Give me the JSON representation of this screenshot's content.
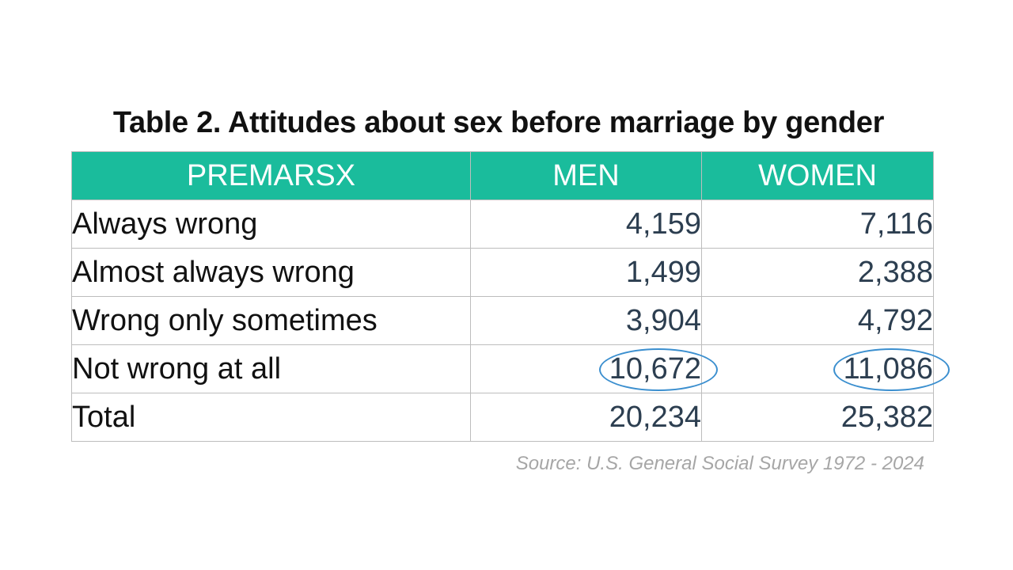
{
  "title": "Table 2. Attitudes about sex before marriage by gender",
  "source": "Source: U.S. General Social Survey 1972 - 2024",
  "colors": {
    "header_bg": "#1abc9c",
    "header_text": "#ffffff",
    "value_text": "#2c3e50",
    "highlight": "#3b8fcf",
    "source_text": "#a6a6a6"
  },
  "chart_data": {
    "type": "table",
    "title": "Table 2. Attitudes about sex before marriage by gender",
    "columns": [
      "PREMARSX",
      "MEN",
      "WOMEN"
    ],
    "rows": [
      {
        "label": "Always wrong",
        "men": "4,159",
        "women": "7,116"
      },
      {
        "label": "Almost always wrong",
        "men": "1,499",
        "women": "2,388"
      },
      {
        "label": "Wrong only sometimes",
        "men": "3,904",
        "women": "4,792"
      },
      {
        "label": "Not wrong at all",
        "men": "10,672",
        "women": "11,086"
      },
      {
        "label": "Total",
        "men": "20,234",
        "women": "25,382"
      }
    ],
    "highlighted_row": "Not wrong at all"
  }
}
